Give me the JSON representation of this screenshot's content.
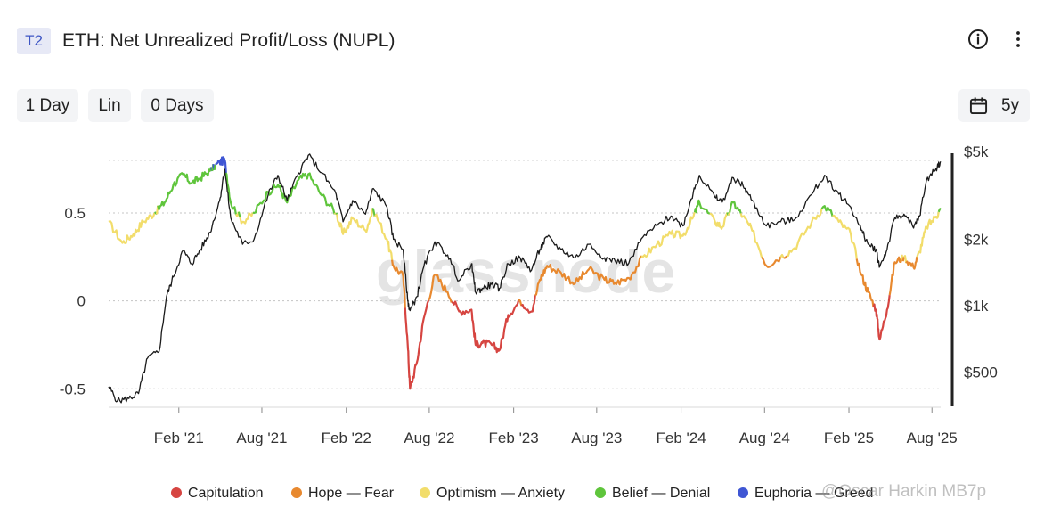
{
  "header": {
    "tier": "T2",
    "title": "ETH: Net Unrealized Profit/Loss (NUPL)"
  },
  "controls": {
    "resolution": "1 Day",
    "scale": "Lin",
    "sma": "0 Days",
    "range": "5y"
  },
  "watermark": {
    "logo": "glassnode",
    "credit": "@Oscar Harkin MB7p"
  },
  "colors": {
    "capitulation": "#d64541",
    "hope_fear": "#e8892f",
    "optimism_anxiety": "#f2dd6b",
    "belief_denial": "#5fc53c",
    "euphoria_greed": "#3f56d4",
    "price": "#1a1a1a"
  },
  "chart_data": {
    "type": "line",
    "title": "ETH: Net Unrealized Profit/Loss (NUPL)",
    "x_ticks": [
      "Feb '21",
      "Aug '21",
      "Feb '22",
      "Aug '22",
      "Feb '23",
      "Aug '23",
      "Feb '24",
      "Aug '24",
      "Feb '25",
      "Aug '25"
    ],
    "x_range": [
      "2020-09-01",
      "2025-08-20"
    ],
    "y_left": {
      "ticks": [
        "0.5",
        "0",
        "-0.5"
      ],
      "range": [
        -0.6,
        0.85
      ]
    },
    "y_right": {
      "ticks": [
        "$5k",
        "$2k",
        "$1k",
        "$500"
      ],
      "scale": "log",
      "range": [
        350,
        5000
      ]
    },
    "legend": [
      "Capitulation",
      "Hope — Fear",
      "Optimism — Anxiety",
      "Belief — Denial",
      "Euphoria — Greed"
    ],
    "series": [
      {
        "name": "NUPL",
        "axis": "left",
        "points": [
          [
            "2020-09-01",
            0.45
          ],
          [
            "2020-10-01",
            0.33
          ],
          [
            "2020-10-25",
            0.38
          ],
          [
            "2020-11-15",
            0.45
          ],
          [
            "2020-12-10",
            0.5
          ],
          [
            "2021-01-01",
            0.56
          ],
          [
            "2021-01-20",
            0.66
          ],
          [
            "2021-02-10",
            0.72
          ],
          [
            "2021-03-01",
            0.67
          ],
          [
            "2021-03-20",
            0.7
          ],
          [
            "2021-04-10",
            0.74
          ],
          [
            "2021-05-01",
            0.79
          ],
          [
            "2021-05-12",
            0.8
          ],
          [
            "2021-05-25",
            0.56
          ],
          [
            "2021-06-20",
            0.45
          ],
          [
            "2021-07-15",
            0.5
          ],
          [
            "2021-08-15",
            0.62
          ],
          [
            "2021-09-05",
            0.66
          ],
          [
            "2021-09-25",
            0.56
          ],
          [
            "2021-10-20",
            0.69
          ],
          [
            "2021-11-10",
            0.72
          ],
          [
            "2021-12-10",
            0.6
          ],
          [
            "2022-01-10",
            0.5
          ],
          [
            "2022-01-25",
            0.38
          ],
          [
            "2022-02-15",
            0.47
          ],
          [
            "2022-03-15",
            0.4
          ],
          [
            "2022-04-01",
            0.52
          ],
          [
            "2022-05-01",
            0.35
          ],
          [
            "2022-05-15",
            0.2
          ],
          [
            "2022-06-05",
            0.14
          ],
          [
            "2022-06-15",
            -0.25
          ],
          [
            "2022-06-20",
            -0.5
          ],
          [
            "2022-07-05",
            -0.35
          ],
          [
            "2022-07-20",
            -0.1
          ],
          [
            "2022-08-13",
            0.15
          ],
          [
            "2022-09-10",
            0.05
          ],
          [
            "2022-10-05",
            -0.06
          ],
          [
            "2022-11-01",
            -0.05
          ],
          [
            "2022-11-10",
            -0.25
          ],
          [
            "2022-11-25",
            -0.24
          ],
          [
            "2022-12-15",
            -0.25
          ],
          [
            "2023-01-01",
            -0.28
          ],
          [
            "2023-01-20",
            -0.08
          ],
          [
            "2023-02-15",
            0.0
          ],
          [
            "2023-03-12",
            -0.06
          ],
          [
            "2023-03-30",
            0.12
          ],
          [
            "2023-04-15",
            0.2
          ],
          [
            "2023-05-15",
            0.16
          ],
          [
            "2023-06-15",
            0.1
          ],
          [
            "2023-07-15",
            0.18
          ],
          [
            "2023-08-18",
            0.12
          ],
          [
            "2023-09-10",
            0.1
          ],
          [
            "2023-10-10",
            0.13
          ],
          [
            "2023-11-10",
            0.25
          ],
          [
            "2023-12-10",
            0.32
          ],
          [
            "2024-01-10",
            0.38
          ],
          [
            "2024-02-05",
            0.37
          ],
          [
            "2024-02-28",
            0.48
          ],
          [
            "2024-03-12",
            0.56
          ],
          [
            "2024-04-15",
            0.45
          ],
          [
            "2024-05-01",
            0.42
          ],
          [
            "2024-05-25",
            0.56
          ],
          [
            "2024-06-15",
            0.48
          ],
          [
            "2024-07-05",
            0.4
          ],
          [
            "2024-08-05",
            0.2
          ],
          [
            "2024-09-05",
            0.25
          ],
          [
            "2024-10-05",
            0.3
          ],
          [
            "2024-11-12",
            0.45
          ],
          [
            "2024-12-10",
            0.54
          ],
          [
            "2025-01-10",
            0.45
          ],
          [
            "2025-02-05",
            0.38
          ],
          [
            "2025-02-28",
            0.15
          ],
          [
            "2025-03-15",
            0.05
          ],
          [
            "2025-04-01",
            -0.05
          ],
          [
            "2025-04-09",
            -0.22
          ],
          [
            "2025-04-25",
            -0.05
          ],
          [
            "2025-05-12",
            0.22
          ],
          [
            "2025-06-01",
            0.25
          ],
          [
            "2025-06-22",
            0.19
          ],
          [
            "2025-07-05",
            0.28
          ],
          [
            "2025-07-20",
            0.42
          ],
          [
            "2025-08-10",
            0.48
          ],
          [
            "2025-08-20",
            0.52
          ]
        ]
      },
      {
        "name": "Price",
        "axis": "right",
        "points": [
          [
            "2020-09-01",
            430
          ],
          [
            "2020-09-20",
            370
          ],
          [
            "2020-10-15",
            380
          ],
          [
            "2020-11-05",
            400
          ],
          [
            "2020-11-25",
            580
          ],
          [
            "2020-12-20",
            620
          ],
          [
            "2021-01-05",
            1100
          ],
          [
            "2021-01-20",
            1350
          ],
          [
            "2021-02-10",
            1780
          ],
          [
            "2021-03-01",
            1550
          ],
          [
            "2021-03-20",
            1800
          ],
          [
            "2021-04-10",
            2150
          ],
          [
            "2021-05-01",
            3000
          ],
          [
            "2021-05-12",
            4150
          ],
          [
            "2021-05-25",
            2500
          ],
          [
            "2021-06-20",
            1900
          ],
          [
            "2021-07-15",
            2000
          ],
          [
            "2021-08-15",
            3200
          ],
          [
            "2021-09-05",
            3900
          ],
          [
            "2021-09-25",
            3000
          ],
          [
            "2021-10-20",
            4000
          ],
          [
            "2021-11-10",
            4800
          ],
          [
            "2021-12-10",
            4000
          ],
          [
            "2022-01-10",
            3200
          ],
          [
            "2022-01-25",
            2400
          ],
          [
            "2022-02-15",
            3000
          ],
          [
            "2022-03-15",
            2600
          ],
          [
            "2022-04-01",
            3400
          ],
          [
            "2022-05-01",
            2800
          ],
          [
            "2022-05-15",
            2000
          ],
          [
            "2022-06-05",
            1800
          ],
          [
            "2022-06-15",
            1050
          ],
          [
            "2022-06-20",
            950
          ],
          [
            "2022-07-05",
            1100
          ],
          [
            "2022-07-20",
            1500
          ],
          [
            "2022-08-13",
            1950
          ],
          [
            "2022-09-10",
            1700
          ],
          [
            "2022-10-05",
            1300
          ],
          [
            "2022-11-01",
            1550
          ],
          [
            "2022-11-10",
            1150
          ],
          [
            "2022-11-25",
            1200
          ],
          [
            "2022-12-15",
            1250
          ],
          [
            "2023-01-01",
            1200
          ],
          [
            "2023-01-20",
            1550
          ],
          [
            "2023-02-15",
            1650
          ],
          [
            "2023-03-12",
            1450
          ],
          [
            "2023-03-30",
            1800
          ],
          [
            "2023-04-15",
            2050
          ],
          [
            "2023-05-15",
            1800
          ],
          [
            "2023-06-15",
            1650
          ],
          [
            "2023-07-15",
            1900
          ],
          [
            "2023-08-18",
            1650
          ],
          [
            "2023-09-10",
            1600
          ],
          [
            "2023-10-10",
            1560
          ],
          [
            "2023-11-10",
            2050
          ],
          [
            "2023-12-10",
            2300
          ],
          [
            "2024-01-10",
            2550
          ],
          [
            "2024-02-05",
            2300
          ],
          [
            "2024-02-28",
            3300
          ],
          [
            "2024-03-12",
            3900
          ],
          [
            "2024-04-15",
            3100
          ],
          [
            "2024-05-01",
            2950
          ],
          [
            "2024-05-25",
            3800
          ],
          [
            "2024-06-15",
            3500
          ],
          [
            "2024-07-05",
            3000
          ],
          [
            "2024-08-05",
            2300
          ],
          [
            "2024-09-05",
            2400
          ],
          [
            "2024-10-05",
            2450
          ],
          [
            "2024-11-12",
            3200
          ],
          [
            "2024-12-10",
            3900
          ],
          [
            "2025-01-10",
            3200
          ],
          [
            "2025-02-05",
            2800
          ],
          [
            "2025-02-28",
            2200
          ],
          [
            "2025-03-15",
            1900
          ],
          [
            "2025-04-01",
            1800
          ],
          [
            "2025-04-09",
            1500
          ],
          [
            "2025-04-25",
            1800
          ],
          [
            "2025-05-12",
            2500
          ],
          [
            "2025-06-01",
            2600
          ],
          [
            "2025-06-22",
            2250
          ],
          [
            "2025-07-05",
            2550
          ],
          [
            "2025-07-20",
            3700
          ],
          [
            "2025-08-10",
            4200
          ],
          [
            "2025-08-20",
            4500
          ]
        ]
      }
    ]
  }
}
